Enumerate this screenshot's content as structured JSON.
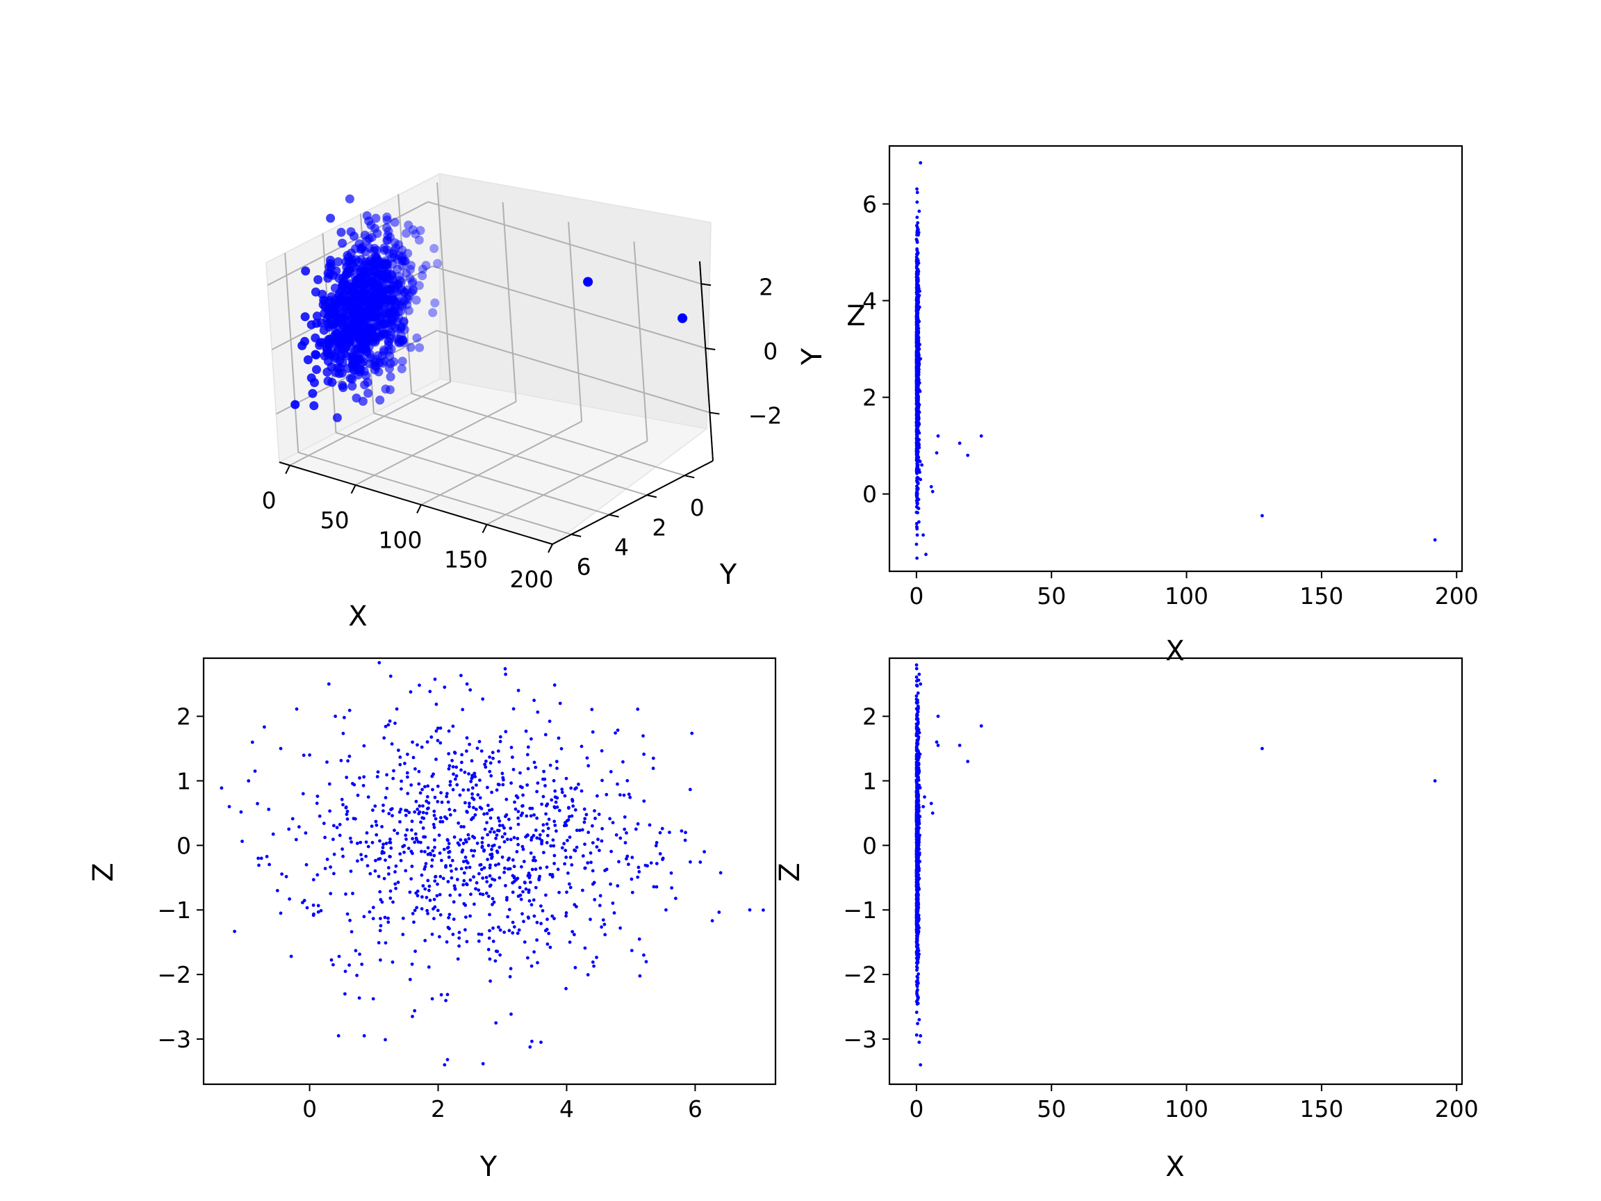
{
  "chart_data": [
    {
      "type": "scatter3d",
      "xlabel": "X",
      "ylabel": "Y",
      "zlabel": "",
      "x_ticks": [
        "0",
        "50",
        "100",
        "150",
        "200"
      ],
      "y_ticks": [
        "0",
        "2",
        "4",
        "6"
      ],
      "z_ticks": [
        "−2",
        "0",
        "2"
      ],
      "xlim": [
        -8,
        200
      ],
      "ylim": [
        -1.5,
        7
      ],
      "zlim": [
        -3.5,
        2.7
      ],
      "grid": true,
      "point_color": "#0000ff",
      "outliers": [
        {
          "x": 128,
          "y": -0.45,
          "z": 1.5
        },
        {
          "x": 192,
          "y": -0.95,
          "z": 1.0
        }
      ]
    },
    {
      "type": "scatter",
      "xlabel": "X",
      "ylabel": "Y",
      "overlap_label": "Z",
      "x_ticks": [
        0,
        50,
        100,
        150,
        200
      ],
      "y_ticks": [
        0,
        2,
        4,
        6
      ],
      "xlim": [
        -10,
        202
      ],
      "ylim": [
        -1.6,
        7.2
      ],
      "point_color": "#0000ff",
      "points": [
        [
          1.5,
          6.85
        ],
        [
          1.0,
          5.85
        ],
        [
          8,
          1.2
        ],
        [
          7.5,
          0.85
        ],
        [
          16,
          1.05
        ],
        [
          19,
          0.8
        ],
        [
          24,
          1.2
        ],
        [
          5.5,
          0.15
        ],
        [
          6,
          0.05
        ],
        [
          2.5,
          -0.85
        ],
        [
          3.5,
          -1.25
        ],
        [
          0.3,
          -0.85
        ],
        [
          128,
          -0.45
        ],
        [
          192,
          -0.95
        ],
        [
          1.5,
          0.3
        ],
        [
          2.0,
          0.6
        ],
        [
          1.2,
          0.45
        ],
        [
          0.8,
          -0.3
        ]
      ]
    },
    {
      "type": "scatter",
      "xlabel": "Y",
      "ylabel": "Z",
      "x_ticks": [
        0,
        2,
        4,
        6
      ],
      "y_ticks": [
        "−3",
        "−2",
        "−1",
        "0",
        "1",
        "2"
      ],
      "y_tick_values": [
        -3,
        -2,
        -1,
        0,
        1,
        2
      ],
      "xlim": [
        -1.65,
        7.25
      ],
      "ylim": [
        -3.7,
        2.9
      ],
      "point_color": "#0000ff",
      "points": [
        [
          -1.25,
          0.6
        ],
        [
          -0.95,
          1.0
        ],
        [
          -0.85,
          1.15
        ],
        [
          -0.8,
          -0.2
        ],
        [
          -0.75,
          -0.2
        ],
        [
          -0.5,
          -0.7
        ],
        [
          -0.45,
          1.5
        ],
        [
          -0.45,
          -1.05
        ],
        [
          0.3,
          2.5
        ],
        [
          0.4,
          2.0
        ],
        [
          0.45,
          -2.95
        ],
        [
          0.55,
          -2.3
        ],
        [
          0.85,
          -2.95
        ],
        [
          1.6,
          -2.65
        ],
        [
          2.1,
          -3.4
        ],
        [
          2.9,
          -2.75
        ],
        [
          3.6,
          -3.05
        ],
        [
          3.05,
          2.65
        ],
        [
          3.25,
          2.4
        ],
        [
          2.1,
          2.45
        ],
        [
          2.45,
          2.5
        ],
        [
          3.9,
          2.2
        ],
        [
          6.85,
          -1.0
        ],
        [
          5.85,
          0.2
        ],
        [
          5.5,
          -0.2
        ],
        [
          5.35,
          1.35
        ],
        [
          5.2,
          -1.7
        ],
        [
          0.0,
          1.4
        ],
        [
          -0.1,
          0.8
        ],
        [
          -0.05,
          -0.3
        ]
      ]
    },
    {
      "type": "scatter",
      "xlabel": "X",
      "ylabel": "Z",
      "x_ticks": [
        0,
        50,
        100,
        150,
        200
      ],
      "y_ticks": [
        "−3",
        "−2",
        "−1",
        "0",
        "1",
        "2"
      ],
      "y_tick_values": [
        -3,
        -2,
        -1,
        0,
        1,
        2
      ],
      "xlim": [
        -10,
        202
      ],
      "ylim": [
        -3.7,
        2.9
      ],
      "point_color": "#0000ff",
      "points": [
        [
          1.0,
          2.65
        ],
        [
          1.5,
          2.5
        ],
        [
          8,
          2.0
        ],
        [
          7.5,
          1.6
        ],
        [
          8,
          1.55
        ],
        [
          16,
          1.55
        ],
        [
          19,
          1.3
        ],
        [
          24,
          1.85
        ],
        [
          5.5,
          0.65
        ],
        [
          6,
          0.5
        ],
        [
          128,
          1.5
        ],
        [
          192,
          1.0
        ],
        [
          1.0,
          -2.7
        ],
        [
          1.5,
          -2.95
        ],
        [
          1.0,
          -3.05
        ],
        [
          1.5,
          -3.4
        ],
        [
          2.5,
          0.6
        ],
        [
          3.0,
          0.75
        ]
      ]
    }
  ]
}
